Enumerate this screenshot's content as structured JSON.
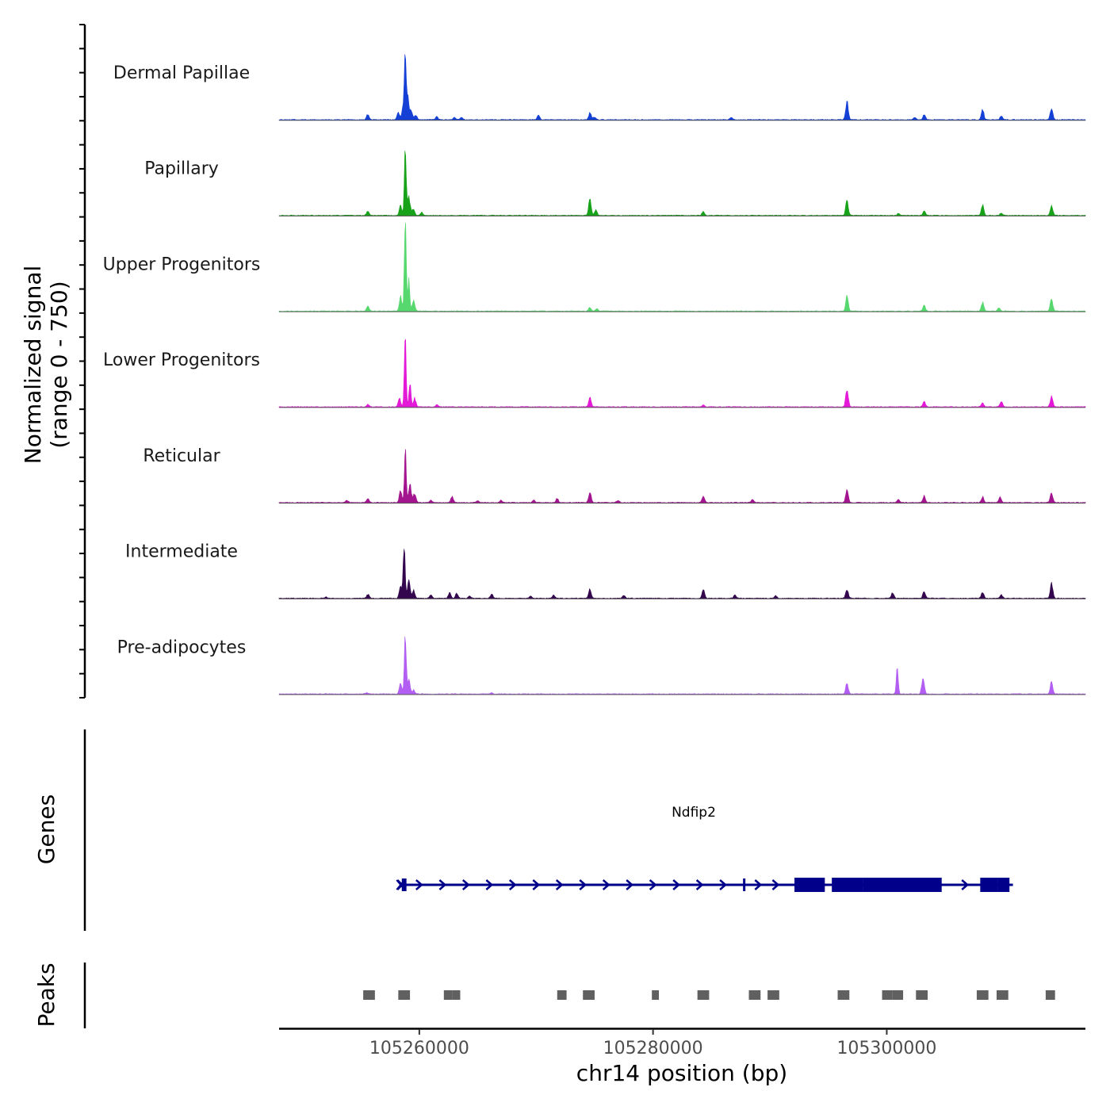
{
  "chart_data": {
    "type": "area",
    "chromosome": "chr14",
    "xlabel": "chr14 position (bp)",
    "xlim": [
      105248000,
      105317000
    ],
    "x_ticks": [
      105260000,
      105280000,
      105300000
    ],
    "x_tick_labels": [
      "105260000",
      "105280000",
      "105300000"
    ],
    "coverage_panel": {
      "ylabel": "Normalized signal",
      "ylabel_range": "(range 0 - 750)",
      "ylim": [
        0,
        750
      ],
      "tracks": [
        {
          "name": "Dermal Papillae",
          "color": "#1440d6",
          "peaks": [
            [
              105255600,
              70
            ],
            [
              105258200,
              90
            ],
            [
              105258600,
              150
            ],
            [
              105258800,
              730
            ],
            [
              105259000,
              280
            ],
            [
              105259300,
              120
            ],
            [
              105259700,
              60
            ],
            [
              105261500,
              40
            ],
            [
              105263000,
              30
            ],
            [
              105263600,
              30
            ],
            [
              105270200,
              55
            ],
            [
              105274600,
              90
            ],
            [
              105275000,
              35
            ],
            [
              105286700,
              30
            ],
            [
              105296600,
              230
            ],
            [
              105302400,
              30
            ],
            [
              105303200,
              70
            ],
            [
              105308200,
              130
            ],
            [
              105309800,
              50
            ],
            [
              105314100,
              150
            ]
          ]
        },
        {
          "name": "Papillary",
          "color": "#18a21a",
          "peaks": [
            [
              105255600,
              60
            ],
            [
              105258400,
              130
            ],
            [
              105258800,
              810
            ],
            [
              105259100,
              250
            ],
            [
              105259500,
              90
            ],
            [
              105260200,
              40
            ],
            [
              105274600,
              210
            ],
            [
              105275100,
              70
            ],
            [
              105284300,
              50
            ],
            [
              105296600,
              190
            ],
            [
              105301000,
              25
            ],
            [
              105303200,
              60
            ],
            [
              105308200,
              130
            ],
            [
              105309800,
              30
            ],
            [
              105314100,
              120
            ]
          ]
        },
        {
          "name": "Upper Progenitors",
          "color": "#57d86e",
          "peaks": [
            [
              105255600,
              60
            ],
            [
              105258400,
              180
            ],
            [
              105258800,
              1110
            ],
            [
              105259100,
              400
            ],
            [
              105259500,
              140
            ],
            [
              105274600,
              50
            ],
            [
              105275200,
              30
            ],
            [
              105296600,
              210
            ],
            [
              105303200,
              70
            ],
            [
              105308200,
              110
            ],
            [
              105309600,
              45
            ],
            [
              105314100,
              160
            ]
          ]
        },
        {
          "name": "Lower Progenitors",
          "color": "#e418d7",
          "peaks": [
            [
              105255600,
              35
            ],
            [
              105258300,
              110
            ],
            [
              105258800,
              860
            ],
            [
              105259200,
              330
            ],
            [
              105259600,
              110
            ],
            [
              105261500,
              25
            ],
            [
              105274600,
              110
            ],
            [
              105284300,
              25
            ],
            [
              105296600,
              240
            ],
            [
              105303200,
              65
            ],
            [
              105308200,
              50
            ],
            [
              105309800,
              70
            ],
            [
              105314100,
              130
            ]
          ]
        },
        {
          "name": "Reticular",
          "color": "#a3148f",
          "peaks": [
            [
              105253800,
              30
            ],
            [
              105255600,
              50
            ],
            [
              105258400,
              150
            ],
            [
              105258800,
              670
            ],
            [
              105259200,
              240
            ],
            [
              105259600,
              120
            ],
            [
              105261000,
              30
            ],
            [
              105262800,
              80
            ],
            [
              105265000,
              25
            ],
            [
              105267000,
              30
            ],
            [
              105269800,
              30
            ],
            [
              105271800,
              50
            ],
            [
              105274600,
              130
            ],
            [
              105277000,
              30
            ],
            [
              105284300,
              80
            ],
            [
              105288500,
              40
            ],
            [
              105296600,
              160
            ],
            [
              105301000,
              40
            ],
            [
              105303200,
              80
            ],
            [
              105308200,
              70
            ],
            [
              105309700,
              70
            ],
            [
              105314100,
              130
            ]
          ]
        },
        {
          "name": "Intermediate",
          "color": "#33064e",
          "peaks": [
            [
              105252000,
              15
            ],
            [
              105255600,
              50
            ],
            [
              105258400,
              160
            ],
            [
              105258700,
              690
            ],
            [
              105259100,
              240
            ],
            [
              105259500,
              110
            ],
            [
              105261000,
              40
            ],
            [
              105262600,
              70
            ],
            [
              105263200,
              60
            ],
            [
              105264300,
              30
            ],
            [
              105266200,
              50
            ],
            [
              105269500,
              30
            ],
            [
              105271500,
              40
            ],
            [
              105274600,
              120
            ],
            [
              105277500,
              40
            ],
            [
              105284300,
              110
            ],
            [
              105287000,
              40
            ],
            [
              105290500,
              30
            ],
            [
              105296600,
              120
            ],
            [
              105300500,
              70
            ],
            [
              105303200,
              90
            ],
            [
              105308200,
              80
            ],
            [
              105309800,
              40
            ],
            [
              105314100,
              190
            ]
          ]
        },
        {
          "name": "Pre-adipocytes",
          "color": "#b35ef2",
          "peaks": [
            [
              105255500,
              15
            ],
            [
              105258400,
              130
            ],
            [
              105258800,
              750
            ],
            [
              105259100,
              180
            ],
            [
              105259500,
              50
            ],
            [
              105266200,
              15
            ],
            [
              105296600,
              140
            ],
            [
              105300900,
              390
            ],
            [
              105303100,
              220
            ],
            [
              105314100,
              150
            ]
          ]
        }
      ]
    },
    "genes_panel": {
      "ylabel": "Genes",
      "gene": {
        "name": "Ndfip2",
        "color": "#00008b",
        "start": 105258300,
        "end": 105310800,
        "tss": 105258400,
        "strand": "+",
        "exons": [
          [
            105258500,
            105258900
          ],
          [
            105287700,
            105287850
          ],
          [
            105292100,
            105294700
          ],
          [
            105295300,
            105298000
          ],
          [
            105298000,
            105304700
          ],
          [
            105308000,
            105309500
          ],
          [
            105309500,
            105310500
          ]
        ],
        "arrows": [
          105260000,
          105262000,
          105264000,
          105266000,
          105268000,
          105270000,
          105272000,
          105274000,
          105276000,
          105278000,
          105280000,
          105282000,
          105284000,
          105286000,
          105289000,
          105290500,
          105302100,
          105306700
        ]
      }
    },
    "peaks_panel": {
      "ylabel": "Peaks",
      "color": "#606060",
      "regions": [
        [
          105255200,
          105256200
        ],
        [
          105258200,
          105259200
        ],
        [
          105262100,
          105262800
        ],
        [
          105262800,
          105263500
        ],
        [
          105271800,
          105272600
        ],
        [
          105274000,
          105275000
        ],
        [
          105279900,
          105280500
        ],
        [
          105283800,
          105284800
        ],
        [
          105288200,
          105289200
        ],
        [
          105289800,
          105290800
        ],
        [
          105295800,
          105296800
        ],
        [
          105299600,
          105300500
        ],
        [
          105300500,
          105301400
        ],
        [
          105302500,
          105303500
        ],
        [
          105307700,
          105308700
        ],
        [
          105309400,
          105310400
        ],
        [
          105313600,
          105314400
        ]
      ]
    }
  }
}
